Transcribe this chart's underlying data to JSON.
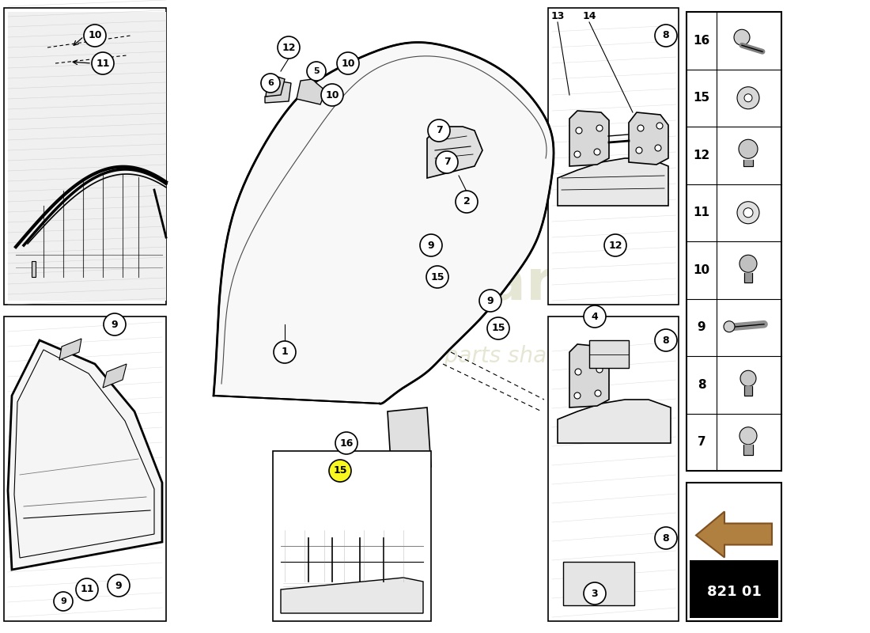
{
  "background_color": "#ffffff",
  "fig_width": 11.0,
  "fig_height": 8.0,
  "dpi": 100,
  "part_number": "821 01",
  "legend_items": [
    {
      "num": "16"
    },
    {
      "num": "15"
    },
    {
      "num": "12"
    },
    {
      "num": "11"
    },
    {
      "num": "10"
    },
    {
      "num": "9"
    },
    {
      "num": "8"
    },
    {
      "num": "7"
    }
  ],
  "watermark_color": "#c8c8a0",
  "watermark_alpha": 0.45
}
